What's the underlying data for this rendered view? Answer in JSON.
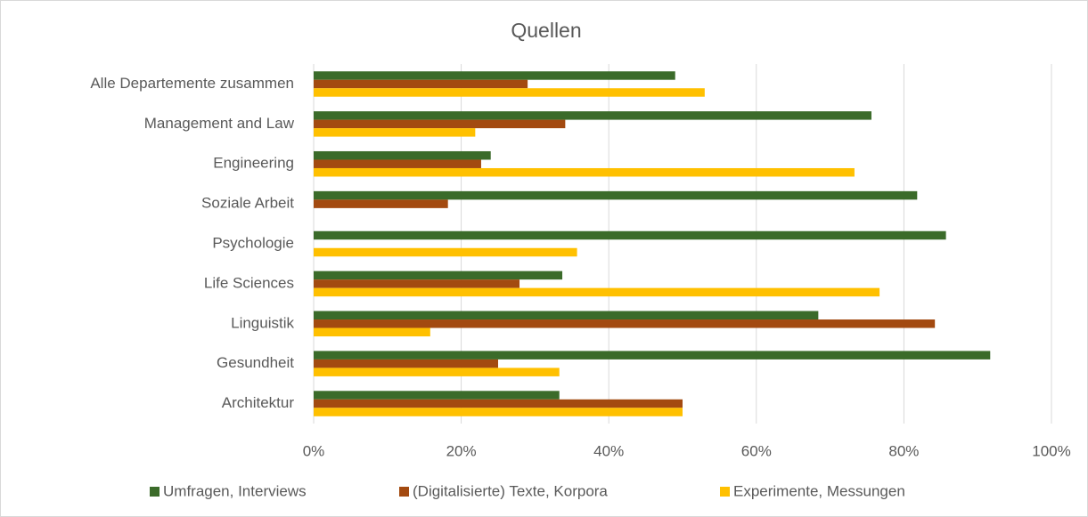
{
  "chart_data": {
    "type": "hbar",
    "title": "Quellen",
    "categories": [
      "Alle Departemente zusammen",
      "Management and Law",
      "Engineering",
      "Soziale Arbeit",
      "Psychologie",
      "Life Sciences",
      "Linguistik",
      "Gesundheit",
      "Architektur"
    ],
    "series": [
      {
        "name": "Umfragen, Interviews",
        "color": "#3b6b2a",
        "values": [
          49,
          75.6,
          24,
          81.8,
          85.7,
          33.7,
          68.4,
          91.7,
          33.3
        ]
      },
      {
        "name": "(Digitalisierte) Texte, Korpora",
        "color": "#a34a10",
        "values": [
          29,
          34.1,
          22.7,
          18.2,
          0,
          27.9,
          84.2,
          25,
          50
        ]
      },
      {
        "name": "Experimente, Messungen",
        "color": "#ffc000",
        "values": [
          53,
          21.9,
          73.3,
          0,
          35.7,
          76.7,
          15.8,
          33.3,
          50
        ]
      }
    ],
    "xlim": [
      0,
      100
    ],
    "xticks": [
      {
        "value": 0,
        "label": "0%"
      },
      {
        "value": 20,
        "label": "20%"
      },
      {
        "value": 40,
        "label": "40%"
      },
      {
        "value": 60,
        "label": "60%"
      },
      {
        "value": 80,
        "label": "80%"
      },
      {
        "value": 100,
        "label": "100%"
      }
    ],
    "grid": true,
    "legend": "bottom"
  }
}
